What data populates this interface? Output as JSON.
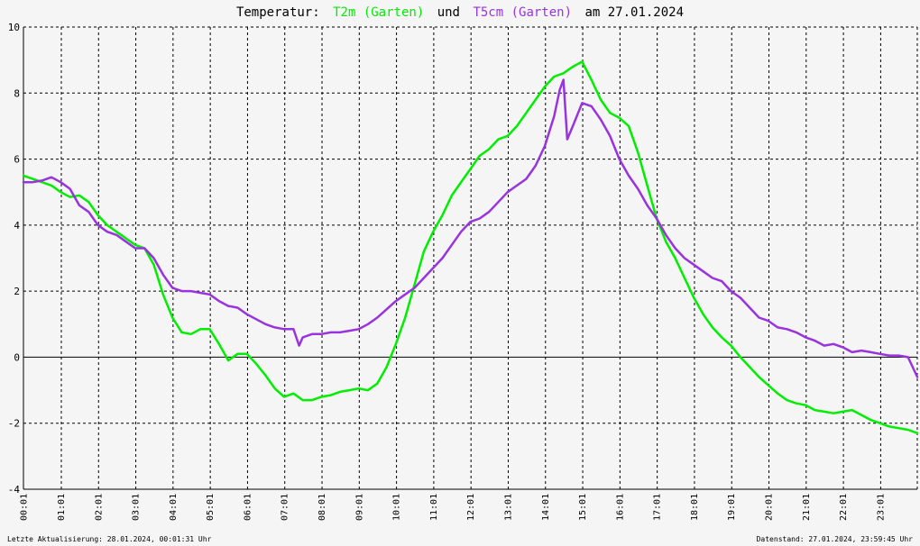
{
  "chart_data": {
    "type": "line",
    "title": {
      "prefix": "Temperatur:",
      "series1": "T2m (Garten)",
      "connector": "und",
      "series2": "T5cm (Garten)",
      "date": "am 27.01.2024"
    },
    "xlabel": "",
    "ylabel": "",
    "ylim": [
      -4,
      10
    ],
    "yticks": [
      -4,
      -2,
      0,
      2,
      4,
      6,
      8,
      10
    ],
    "xticks": [
      "00:01",
      "01:01",
      "02:01",
      "03:01",
      "04:01",
      "05:01",
      "06:01",
      "07:01",
      "08:01",
      "09:01",
      "10:01",
      "11:01",
      "12:01",
      "13:01",
      "14:01",
      "15:01",
      "16:01",
      "17:01",
      "18:01",
      "19:01",
      "20:01",
      "21:01",
      "22:01",
      "23:01"
    ],
    "xlim_hours": [
      0,
      24
    ],
    "grid": true,
    "colors": {
      "T2m": "#00ee00",
      "T5cm": "#9933dd"
    },
    "series": [
      {
        "name": "T2m (Garten)",
        "x_hours": [
          0.0,
          0.25,
          0.5,
          0.75,
          1.0,
          1.25,
          1.5,
          1.75,
          2.0,
          2.25,
          2.5,
          2.75,
          3.0,
          3.25,
          3.5,
          3.75,
          4.0,
          4.25,
          4.5,
          4.75,
          5.0,
          5.25,
          5.5,
          5.75,
          6.0,
          6.25,
          6.5,
          6.75,
          7.0,
          7.25,
          7.5,
          7.75,
          8.0,
          8.25,
          8.5,
          8.75,
          9.0,
          9.25,
          9.5,
          9.75,
          10.0,
          10.25,
          10.5,
          10.75,
          11.0,
          11.25,
          11.5,
          11.75,
          12.0,
          12.25,
          12.5,
          12.75,
          13.0,
          13.25,
          13.5,
          13.75,
          14.0,
          14.25,
          14.5,
          14.75,
          15.0,
          15.25,
          15.5,
          15.75,
          16.0,
          16.25,
          16.5,
          16.75,
          17.0,
          17.25,
          17.5,
          17.75,
          18.0,
          18.25,
          18.5,
          18.75,
          19.0,
          19.25,
          19.5,
          19.75,
          20.0,
          20.25,
          20.5,
          20.75,
          21.0,
          21.25,
          21.5,
          21.75,
          22.0,
          22.25,
          22.5,
          22.75,
          23.0,
          23.25,
          23.5,
          23.75,
          24.0
        ],
        "values": [
          5.5,
          5.4,
          5.3,
          5.2,
          5.0,
          4.85,
          4.9,
          4.7,
          4.3,
          4.0,
          3.8,
          3.6,
          3.4,
          3.3,
          2.8,
          1.9,
          1.2,
          0.75,
          0.7,
          0.85,
          0.85,
          0.4,
          -0.1,
          0.1,
          0.1,
          -0.2,
          -0.55,
          -0.95,
          -1.2,
          -1.1,
          -1.3,
          -1.3,
          -1.2,
          -1.15,
          -1.05,
          -1.0,
          -0.95,
          -1.0,
          -0.8,
          -0.3,
          0.4,
          1.2,
          2.2,
          3.2,
          3.8,
          4.3,
          4.9,
          5.3,
          5.7,
          6.1,
          6.3,
          6.6,
          6.7,
          7.0,
          7.4,
          7.8,
          8.2,
          8.5,
          8.6,
          8.8,
          8.95,
          8.4,
          7.8,
          7.4,
          7.25,
          7.0,
          6.2,
          5.2,
          4.2,
          3.5,
          3.0,
          2.4,
          1.8,
          1.3,
          0.9,
          0.6,
          0.35,
          0.0,
          -0.3,
          -0.6,
          -0.85,
          -1.1,
          -1.3,
          -1.4,
          -1.45,
          -1.6,
          -1.65,
          -1.7,
          -1.65,
          -1.6,
          -1.75,
          -1.9,
          -2.0,
          -2.1,
          -2.15,
          -2.2,
          -2.3
        ],
        "color": "#00ee00"
      },
      {
        "name": "T5cm (Garten)",
        "x_hours": [
          0.0,
          0.25,
          0.5,
          0.75,
          1.0,
          1.25,
          1.5,
          1.75,
          2.0,
          2.25,
          2.5,
          2.75,
          3.0,
          3.25,
          3.5,
          3.75,
          4.0,
          4.25,
          4.5,
          4.75,
          5.0,
          5.25,
          5.5,
          5.75,
          6.0,
          6.25,
          6.5,
          6.75,
          7.0,
          7.25,
          7.4,
          7.5,
          7.75,
          8.0,
          8.25,
          8.5,
          8.75,
          9.0,
          9.25,
          9.5,
          9.75,
          10.0,
          10.25,
          10.5,
          10.75,
          11.0,
          11.25,
          11.5,
          11.75,
          12.0,
          12.25,
          12.5,
          12.75,
          13.0,
          13.25,
          13.5,
          13.75,
          14.0,
          14.25,
          14.4,
          14.5,
          14.6,
          14.75,
          15.0,
          15.25,
          15.5,
          15.75,
          16.0,
          16.25,
          16.5,
          16.75,
          17.0,
          17.25,
          17.5,
          17.75,
          18.0,
          18.25,
          18.5,
          18.75,
          19.0,
          19.25,
          19.5,
          19.75,
          20.0,
          20.25,
          20.5,
          20.75,
          21.0,
          21.25,
          21.5,
          21.75,
          22.0,
          22.25,
          22.5,
          22.75,
          23.0,
          23.25,
          23.5,
          23.75,
          24.0
        ],
        "values": [
          5.3,
          5.3,
          5.35,
          5.45,
          5.3,
          5.1,
          4.6,
          4.4,
          4.0,
          3.8,
          3.7,
          3.5,
          3.3,
          3.3,
          3.0,
          2.5,
          2.1,
          2.0,
          2.0,
          1.95,
          1.9,
          1.7,
          1.55,
          1.5,
          1.3,
          1.15,
          1.0,
          0.9,
          0.85,
          0.85,
          0.35,
          0.6,
          0.7,
          0.7,
          0.75,
          0.75,
          0.8,
          0.85,
          1.0,
          1.2,
          1.45,
          1.7,
          1.9,
          2.1,
          2.4,
          2.7,
          3.0,
          3.4,
          3.8,
          4.1,
          4.2,
          4.4,
          4.7,
          5.0,
          5.2,
          5.4,
          5.8,
          6.4,
          7.3,
          8.1,
          8.4,
          6.6,
          7.0,
          7.7,
          7.6,
          7.2,
          6.7,
          6.0,
          5.5,
          5.1,
          4.6,
          4.2,
          3.7,
          3.3,
          3.0,
          2.8,
          2.6,
          2.4,
          2.3,
          2.0,
          1.8,
          1.5,
          1.2,
          1.1,
          0.9,
          0.85,
          0.75,
          0.6,
          0.5,
          0.35,
          0.4,
          0.3,
          0.15,
          0.2,
          0.15,
          0.1,
          0.05,
          0.05,
          0.0,
          -0.6
        ],
        "color": "#9933dd"
      }
    ]
  },
  "footer": {
    "left": "Letzte Aktualisierung: 28.01.2024, 00:01:31 Uhr",
    "right": "Datenstand: 27.01.2024, 23:59:45 Uhr"
  }
}
